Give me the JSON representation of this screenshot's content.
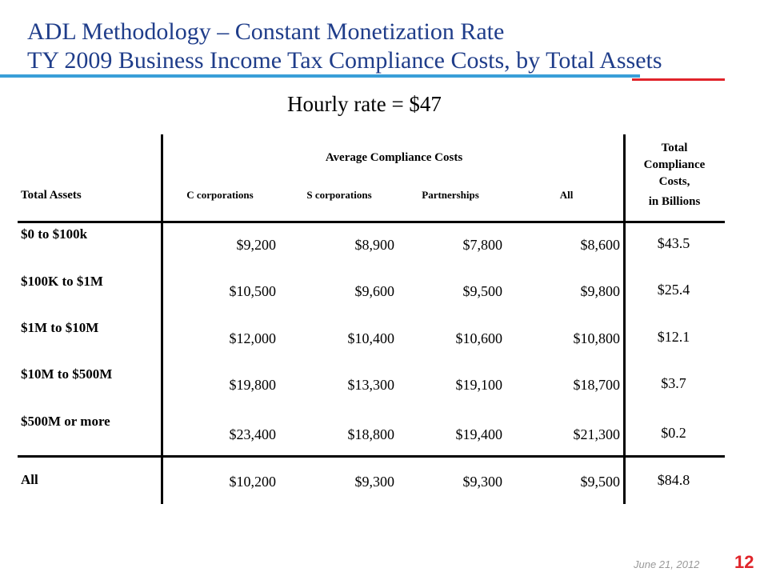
{
  "slide": {
    "title_line1": "ADL Methodology – Constant Monetization Rate",
    "title_line2": "TY 2009 Business Income Tax Compliance Costs, by Total Assets",
    "subtitle": "Hourly rate = $47",
    "date": "June 21, 2012",
    "page_number": "12",
    "colors": {
      "title": "#1f3d8a",
      "rule_blue": "#3a9fd8",
      "rule_red": "#e0242a"
    }
  },
  "table": {
    "group_header": "Average Compliance Costs",
    "total_header": "Total Compliance Costs,",
    "total_header_sub": "in Billions",
    "row_header": "Total Assets",
    "columns": [
      "C corporations",
      "S corporations",
      "Partnerships",
      "All"
    ],
    "rows": [
      {
        "label": "$0 to $100k",
        "values": [
          "$9,200",
          "$8,900",
          "$7,800",
          "$8,600"
        ],
        "total": "$43.5"
      },
      {
        "label": "$100K to $1M",
        "values": [
          "$10,500",
          "$9,600",
          "$9,500",
          "$9,800"
        ],
        "total": "$25.4"
      },
      {
        "label": "$1M to $10M",
        "values": [
          "$12,000",
          "$10,400",
          "$10,600",
          "$10,800"
        ],
        "total": "$12.1"
      },
      {
        "label": "$10M to $500M",
        "values": [
          "$19,800",
          "$13,300",
          "$19,100",
          "$18,700"
        ],
        "total": "$3.7"
      },
      {
        "label": "$500M or more",
        "values": [
          "$23,400",
          "$18,800",
          "$19,400",
          "$21,300"
        ],
        "total": "$0.2"
      },
      {
        "label": "All",
        "values": [
          "$10,200",
          "$9,300",
          "$9,300",
          "$9,500"
        ],
        "total": "$84.8"
      }
    ]
  }
}
